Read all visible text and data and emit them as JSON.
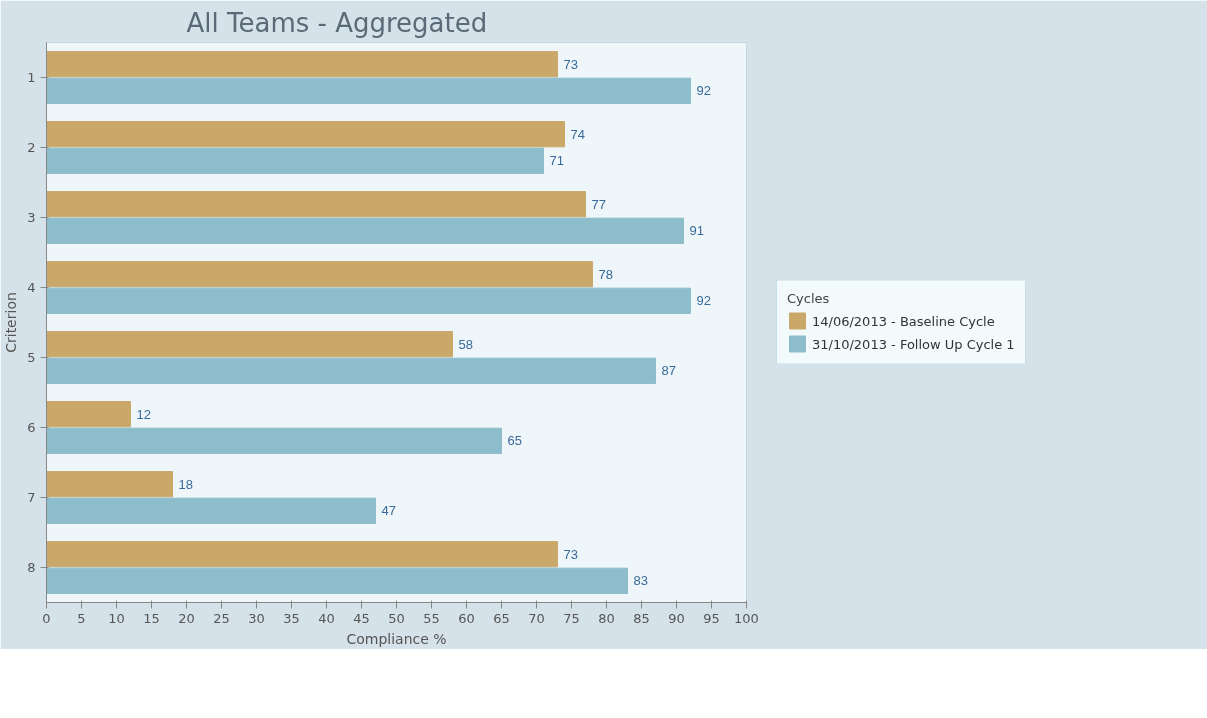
{
  "chart_data": {
    "type": "bar",
    "orientation": "horizontal",
    "title": "All Teams - Aggregated",
    "xlabel": "Compliance %",
    "ylabel": "Criterion",
    "legend_title": "Cycles",
    "categories": [
      "1",
      "2",
      "3",
      "4",
      "5",
      "6",
      "7",
      "8"
    ],
    "series": [
      {
        "name": "14/06/2013 - Baseline Cycle",
        "color": "#c9a86a",
        "values": [
          73,
          74,
          77,
          78,
          58,
          12,
          18,
          73
        ]
      },
      {
        "name": "31/10/2013 - Follow Up Cycle 1",
        "color": "#8dbccb",
        "values": [
          92,
          71,
          91,
          92,
          87,
          65,
          47,
          83
        ]
      }
    ],
    "xlim": [
      0,
      100
    ],
    "xticks": [
      0,
      5,
      10,
      15,
      20,
      25,
      30,
      35,
      40,
      45,
      50,
      55,
      60,
      65,
      70,
      75,
      80,
      85,
      90,
      95,
      100
    ],
    "data_labels": true,
    "legend": "right",
    "grid": false
  }
}
